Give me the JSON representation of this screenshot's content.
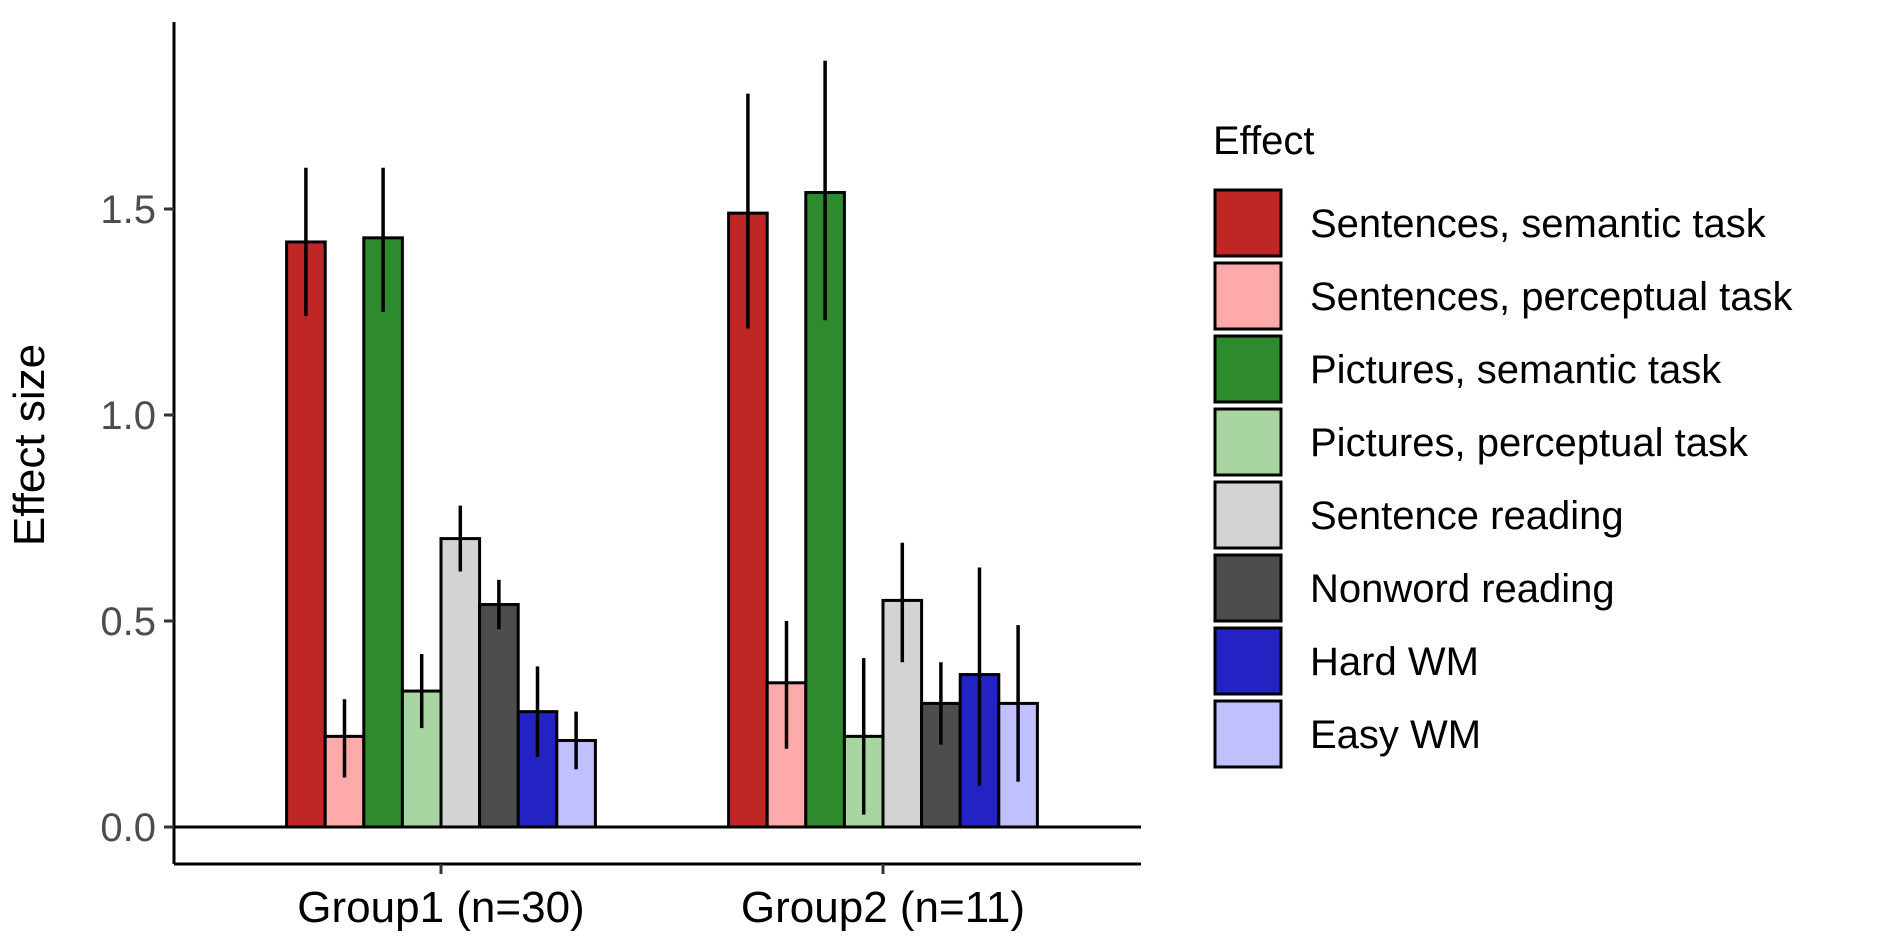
{
  "chart_data": {
    "type": "bar",
    "xlabel": "",
    "ylabel": "Effect size",
    "ylim": [
      -0.09,
      1.95
    ],
    "yticks": [
      "0.0",
      "0.5",
      "1.0",
      "1.5"
    ],
    "ytick_values": [
      0,
      0.5,
      1.0,
      1.5
    ],
    "categories": [
      "Group1 (n=30)",
      "Group2 (n=11)"
    ],
    "legend_title": "Effect",
    "legend_position": "right",
    "grid": false,
    "error_bars": true,
    "series": [
      {
        "name": "Sentences, semantic task",
        "color": "#bf2626",
        "values": [
          1.42,
          1.49
        ],
        "err_low": [
          1.24,
          1.21
        ],
        "err_high": [
          1.6,
          1.78
        ]
      },
      {
        "name": "Sentences, perceptual task",
        "color": "#ffaaaa",
        "values": [
          0.22,
          0.35
        ],
        "err_low": [
          0.12,
          0.19
        ],
        "err_high": [
          0.31,
          0.5
        ]
      },
      {
        "name": "Pictures, semantic task",
        "color": "#2d8a2d",
        "values": [
          1.43,
          1.54
        ],
        "err_low": [
          1.25,
          1.23
        ],
        "err_high": [
          1.6,
          1.86
        ]
      },
      {
        "name": "Pictures, perceptual task",
        "color": "#a8d5a2",
        "values": [
          0.33,
          0.22
        ],
        "err_low": [
          0.24,
          0.03
        ],
        "err_high": [
          0.42,
          0.41
        ]
      },
      {
        "name": "Sentence reading",
        "color": "#d3d3d3",
        "values": [
          0.7,
          0.55
        ],
        "err_low": [
          0.62,
          0.4
        ],
        "err_high": [
          0.78,
          0.69
        ]
      },
      {
        "name": "Nonword reading",
        "color": "#4d4d4d",
        "values": [
          0.54,
          0.3
        ],
        "err_low": [
          0.48,
          0.2
        ],
        "err_high": [
          0.6,
          0.4
        ]
      },
      {
        "name": "Hard WM",
        "color": "#2323c4",
        "values": [
          0.28,
          0.37
        ],
        "err_low": [
          0.17,
          0.1
        ],
        "err_high": [
          0.39,
          0.63
        ]
      },
      {
        "name": "Easy WM",
        "color": "#c0c0ff",
        "values": [
          0.21,
          0.3
        ],
        "err_low": [
          0.14,
          0.11
        ],
        "err_high": [
          0.28,
          0.49
        ]
      }
    ]
  }
}
